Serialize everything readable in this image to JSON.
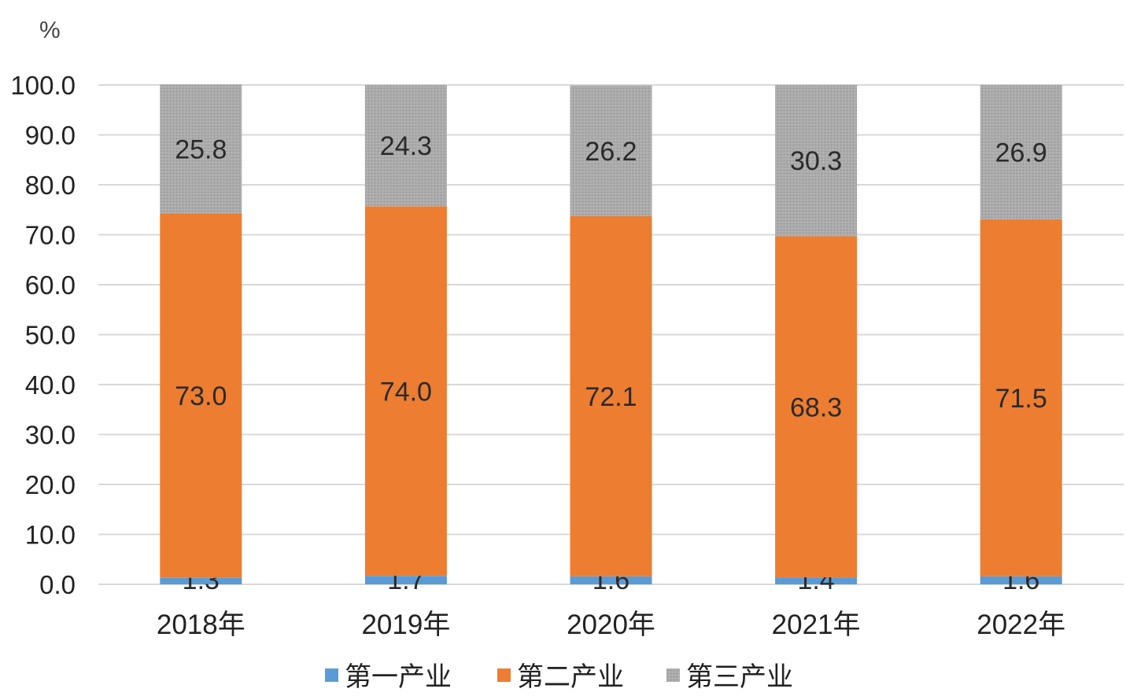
{
  "chart_data": {
    "type": "bar",
    "stacked": true,
    "unit": "%",
    "categories": [
      "2018年",
      "2019年",
      "2020年",
      "2021年",
      "2022年"
    ],
    "series": [
      {
        "name": "第一产业",
        "values": [
          1.3,
          1.7,
          1.6,
          1.4,
          1.6
        ],
        "color": "#5B9BD5"
      },
      {
        "name": "第二产业",
        "values": [
          73.0,
          74.0,
          72.1,
          68.3,
          71.5
        ],
        "color": "#ED7D31"
      },
      {
        "name": "第三产业",
        "values": [
          25.8,
          24.3,
          26.2,
          30.3,
          26.9
        ],
        "color": "#A5A5A5"
      }
    ],
    "y_ticks": [
      "0.0",
      "10.0",
      "20.0",
      "30.0",
      "40.0",
      "50.0",
      "60.0",
      "70.0",
      "80.0",
      "90.0",
      "100.0"
    ],
    "ylim": [
      0,
      100
    ],
    "grid": true,
    "legend_position": "bottom"
  }
}
